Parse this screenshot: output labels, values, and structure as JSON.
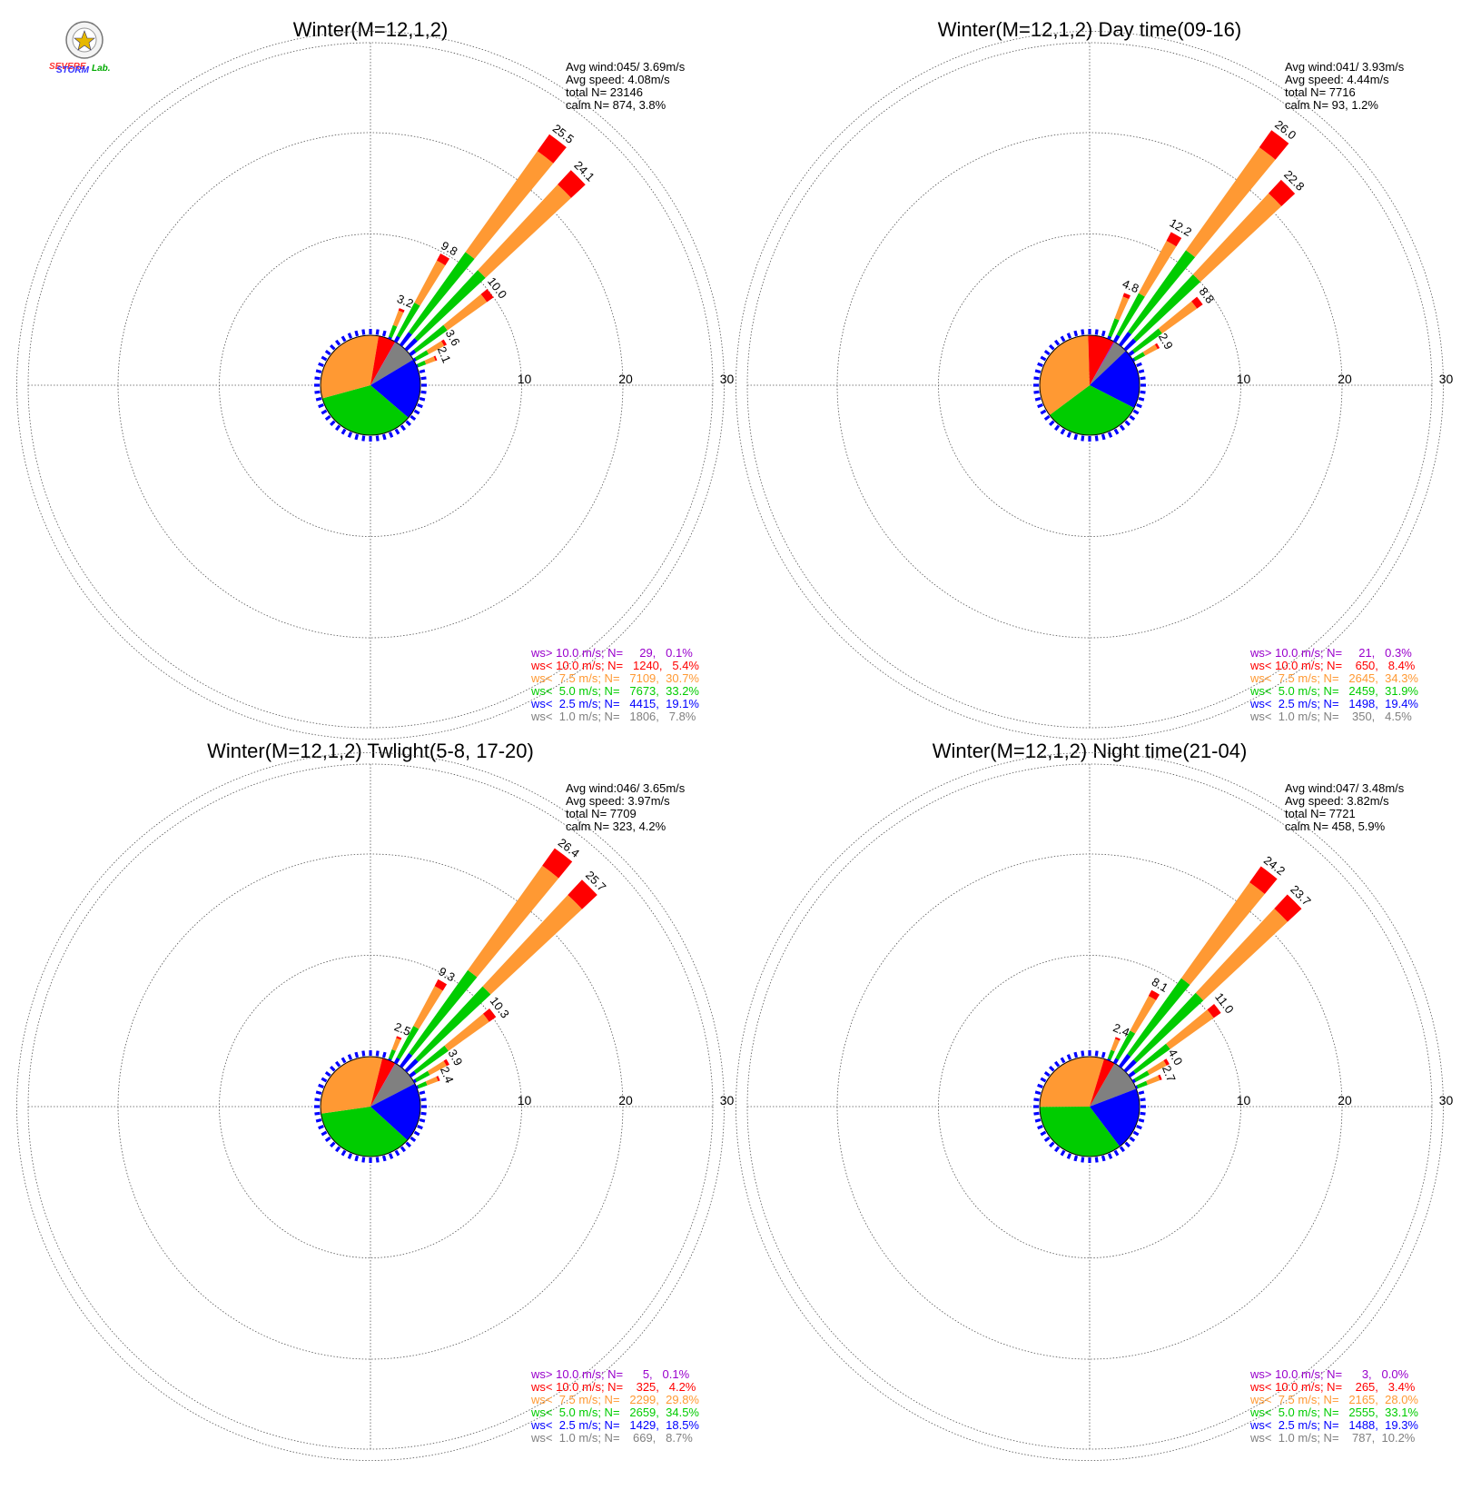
{
  "colors": {
    "purple": "#9900cc",
    "red": "#ff0000",
    "orange": "#ff9933",
    "green": "#00cc00",
    "blue": "#0000ff",
    "gray": "#808080"
  },
  "logo": {
    "text_1": "SEVERE",
    "text_2": "STORM",
    "text_3": "Lab."
  },
  "chart_data": [
    {
      "type": "windrose",
      "title": "Winter(M=12,1,2)",
      "ring_labels": [
        "10",
        "20",
        "30"
      ],
      "rlim": [
        0,
        30
      ],
      "grid": true,
      "stats": {
        "line1": "Avg wind:045/ 3.69m/s",
        "line2": "Avg speed: 4.08m/s",
        "line3": "total N=       23146",
        "line4": "calm N=    874,   3.8%"
      },
      "legend_placement": "bottom-right",
      "legend": [
        "ws> 10.0 m/s; N=     29,   0.1%",
        "ws< 10.0 m/s; N=   1240,   5.4%",
        "ws<  7.5 m/s; N=   7109,  30.7%",
        "ws<  5.0 m/s; N=   7673,  33.2%",
        "ws<  2.5 m/s; N=   4415,  19.1%",
        "ws<  1.0 m/s; N=   1806,   7.8%"
      ],
      "pie_percent": [
        0.1,
        5.4,
        30.7,
        33.2,
        19.1,
        7.8
      ],
      "direction_bins_deg": [
        22.5,
        30,
        37.5,
        45,
        52.5,
        60,
        67.5,
        75
      ],
      "direction_totals": [
        3.2,
        9.8,
        25.5,
        24.1,
        10.0,
        3.6,
        2.1,
        0
      ],
      "labels": [
        "3.2",
        "9.8",
        "25.5",
        "24.1",
        "10.0",
        "3.6",
        "2.1",
        ""
      ]
    },
    {
      "type": "windrose",
      "title": "Winter(M=12,1,2) Day time(09-16)",
      "ring_labels": [
        "10",
        "20",
        "30"
      ],
      "rlim": [
        0,
        30
      ],
      "grid": true,
      "stats": {
        "line1": "Avg wind:041/ 3.93m/s",
        "line2": "Avg speed: 4.44m/s",
        "line3": "total N=        7716",
        "line4": "calm N=     93,   1.2%"
      },
      "legend_placement": "bottom-right",
      "legend": [
        "ws> 10.0 m/s; N=     21,   0.3%",
        "ws< 10.0 m/s; N=    650,   8.4%",
        "ws<  7.5 m/s; N=   2645,  34.3%",
        "ws<  5.0 m/s; N=   2459,  31.9%",
        "ws<  2.5 m/s; N=   1498,  19.4%",
        "ws<  1.0 m/s; N=    350,   4.5%"
      ],
      "pie_percent": [
        0.3,
        8.4,
        34.3,
        31.9,
        19.4,
        4.5
      ],
      "direction_bins_deg": [
        22.5,
        30,
        37.5,
        45,
        52.5,
        60,
        67.5,
        75
      ],
      "direction_totals": [
        4.8,
        12.2,
        26.0,
        22.8,
        8.8,
        2.9,
        0,
        0
      ],
      "labels": [
        "4.8",
        "12.2",
        "26.0",
        "22.8",
        "8.8",
        "2.9",
        "",
        ""
      ]
    },
    {
      "type": "windrose",
      "title": "Winter(M=12,1,2) Twlight(5-8, 17-20)",
      "ring_labels": [
        "10",
        "20",
        "30"
      ],
      "rlim": [
        0,
        30
      ],
      "grid": true,
      "stats": {
        "line1": "Avg wind:046/ 3.65m/s",
        "line2": "Avg speed: 3.97m/s",
        "line3": "total N=        7709",
        "line4": "calm N=    323,   4.2%"
      },
      "legend_placement": "bottom-right",
      "legend": [
        "ws> 10.0 m/s; N=      5,   0.1%",
        "ws< 10.0 m/s; N=    325,   4.2%",
        "ws<  7.5 m/s; N=   2299,  29.8%",
        "ws<  5.0 m/s; N=   2659,  34.5%",
        "ws<  2.5 m/s; N=   1429,  18.5%",
        "ws<  1.0 m/s; N=    669,   8.7%"
      ],
      "pie_percent": [
        0.1,
        4.2,
        29.8,
        34.5,
        18.5,
        8.7
      ],
      "direction_bins_deg": [
        22.5,
        30,
        37.5,
        45,
        52.5,
        60,
        67.5,
        75
      ],
      "direction_totals": [
        2.5,
        9.3,
        26.4,
        25.7,
        10.3,
        3.9,
        2.4,
        0
      ],
      "labels": [
        "2.5",
        "9.3",
        "26.4",
        "25.7",
        "10.3",
        "3.9",
        "2.4",
        ""
      ]
    },
    {
      "type": "windrose",
      "title": "Winter(M=12,1,2) Night time(21-04)",
      "ring_labels": [
        "10",
        "20",
        "30"
      ],
      "rlim": [
        0,
        30
      ],
      "grid": true,
      "stats": {
        "line1": "Avg wind:047/ 3.48m/s",
        "line2": "Avg speed: 3.82m/s",
        "line3": "total N=        7721",
        "line4": "calm N=    458,   5.9%"
      },
      "legend_placement": "bottom-right",
      "legend": [
        "ws> 10.0 m/s; N=      3,   0.0%",
        "ws< 10.0 m/s; N=    265,   3.4%",
        "ws<  7.5 m/s; N=   2165,  28.0%",
        "ws<  5.0 m/s; N=   2555,  33.1%",
        "ws<  2.5 m/s; N=   1488,  19.3%",
        "ws<  1.0 m/s; N=    787,  10.2%"
      ],
      "pie_percent": [
        0.0,
        3.4,
        28.0,
        33.1,
        19.3,
        10.2
      ],
      "direction_bins_deg": [
        22.5,
        30,
        37.5,
        45,
        52.5,
        60,
        67.5,
        75
      ],
      "direction_totals": [
        2.4,
        8.1,
        24.2,
        23.7,
        11.0,
        4.0,
        2.7,
        0
      ],
      "labels": [
        "2.4",
        "8.1",
        "24.2",
        "23.7",
        "11.0",
        "4.0",
        "2.7",
        ""
      ]
    }
  ]
}
